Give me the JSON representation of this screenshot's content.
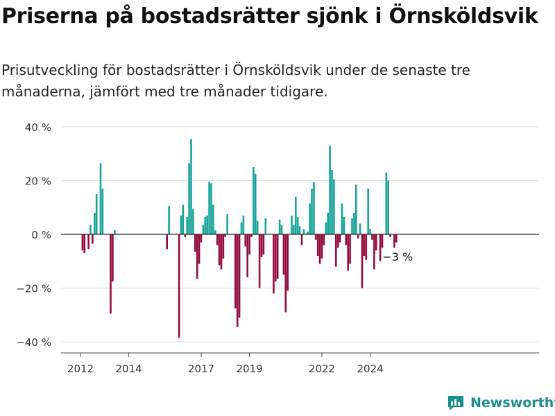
{
  "header": {
    "title": "Priserna på bostadsrätter sjönk i Örnsköldsvik",
    "subtitle": "Prisutveckling för bostadsrätter i Örnsköldsvik under de senaste tre månaderna, jämfört med tre månader tidigare."
  },
  "brand": {
    "name": "Newsworthy",
    "icon": "newsworthy-logo-icon"
  },
  "colors": {
    "positive": "#17a398",
    "negative": "#930a3e",
    "grid": "#dddddd",
    "axis": "#444444"
  },
  "chart_data": {
    "type": "bar",
    "title": "Priserna på bostadsrätter sjönk i Örnsköldsvik",
    "xlabel": "",
    "ylabel": "",
    "ylim": [
      -40,
      40
    ],
    "yticks": [
      40,
      20,
      0,
      -20,
      -40
    ],
    "ytick_labels": [
      "40 %",
      "20 %",
      "0 %",
      "−20 %",
      "−40 %"
    ],
    "xticks": [
      {
        "year": 2012,
        "label": "2012"
      },
      {
        "year": 2014,
        "label": "2014"
      },
      {
        "year": 2017,
        "label": "2017"
      },
      {
        "year": 2019,
        "label": "2019"
      },
      {
        "year": 2022,
        "label": "2022"
      },
      {
        "year": 2024,
        "label": "2024"
      }
    ],
    "series": [
      {
        "points": [
          [
            "2012-02",
            -6
          ],
          [
            "2012-03",
            -7
          ],
          [
            "2012-05",
            -5.5
          ],
          [
            "2012-06",
            3.5
          ],
          [
            "2012-07",
            -3.5
          ],
          [
            "2012-08",
            8
          ],
          [
            "2012-09",
            15
          ],
          [
            "2012-11",
            26.5
          ],
          [
            "2012-12",
            17
          ],
          [
            "2013-04",
            -29.5
          ],
          [
            "2013-05",
            -17.5
          ],
          [
            "2013-06",
            1.5
          ],
          [
            "2015-08",
            -5.5
          ],
          [
            "2015-09",
            10.5
          ],
          [
            "2016-02",
            -38.5
          ],
          [
            "2016-03",
            7
          ],
          [
            "2016-04",
            11
          ],
          [
            "2016-05",
            -1
          ],
          [
            "2016-06",
            6.5
          ],
          [
            "2016-07",
            26.5
          ],
          [
            "2016-08",
            35.5
          ],
          [
            "2016-09",
            9.5
          ],
          [
            "2016-10",
            -6.5
          ],
          [
            "2016-11",
            -16.5
          ],
          [
            "2016-12",
            -11
          ],
          [
            "2017-01",
            -3
          ],
          [
            "2017-02",
            3.5
          ],
          [
            "2017-03",
            6.5
          ],
          [
            "2017-04",
            7
          ],
          [
            "2017-05",
            19.5
          ],
          [
            "2017-06",
            19
          ],
          [
            "2017-07",
            11
          ],
          [
            "2017-08",
            1.5
          ],
          [
            "2017-09",
            -4
          ],
          [
            "2017-10",
            -11.5
          ],
          [
            "2017-11",
            -13
          ],
          [
            "2017-12",
            -9
          ],
          [
            "2018-01",
            -1
          ],
          [
            "2018-02",
            7.5
          ],
          [
            "2018-06",
            -27.5
          ],
          [
            "2018-07",
            -34.5
          ],
          [
            "2018-08",
            -31
          ],
          [
            "2018-09",
            4.5
          ],
          [
            "2018-10",
            7
          ],
          [
            "2018-11",
            -4.5
          ],
          [
            "2018-12",
            -16
          ],
          [
            "2019-01",
            -7.5
          ],
          [
            "2019-02",
            -1
          ],
          [
            "2019-03",
            25
          ],
          [
            "2019-04",
            22.5
          ],
          [
            "2019-05",
            5
          ],
          [
            "2019-06",
            -20
          ],
          [
            "2019-07",
            -8.5
          ],
          [
            "2019-08",
            -7.5
          ],
          [
            "2019-09",
            6
          ],
          [
            "2020-01",
            -22
          ],
          [
            "2020-02",
            -17.5
          ],
          [
            "2020-03",
            -16.5
          ],
          [
            "2020-04",
            5.5
          ],
          [
            "2020-05",
            3.5
          ],
          [
            "2020-06",
            -15
          ],
          [
            "2020-07",
            -29
          ],
          [
            "2020-08",
            -21
          ],
          [
            "2020-10",
            7
          ],
          [
            "2020-11",
            3.5
          ],
          [
            "2020-12",
            14
          ],
          [
            "2021-01",
            6.5
          ],
          [
            "2021-02",
            3
          ],
          [
            "2021-03",
            -4
          ],
          [
            "2021-04",
            2
          ],
          [
            "2021-06",
            1
          ],
          [
            "2021-07",
            11.5
          ],
          [
            "2021-08",
            17
          ],
          [
            "2021-09",
            19.5
          ],
          [
            "2021-10",
            -2
          ],
          [
            "2021-11",
            -8
          ],
          [
            "2021-12",
            -11
          ],
          [
            "2022-01",
            -9
          ],
          [
            "2022-02",
            -4
          ],
          [
            "2022-03",
            4.5
          ],
          [
            "2022-04",
            8
          ],
          [
            "2022-05",
            33
          ],
          [
            "2022-06",
            24
          ],
          [
            "2022-07",
            20.5
          ],
          [
            "2022-08",
            -12
          ],
          [
            "2022-09",
            -5
          ],
          [
            "2022-10",
            -3
          ],
          [
            "2022-11",
            11.5
          ],
          [
            "2022-12",
            6.5
          ],
          [
            "2023-01",
            -4
          ],
          [
            "2023-02",
            -13.5
          ],
          [
            "2023-03",
            -11
          ],
          [
            "2023-04",
            6
          ],
          [
            "2023-05",
            8
          ],
          [
            "2023-06",
            18.5
          ],
          [
            "2023-07",
            -1.5
          ],
          [
            "2023-08",
            4
          ],
          [
            "2023-09",
            -20
          ],
          [
            "2023-10",
            -8
          ],
          [
            "2023-11",
            -9.5
          ],
          [
            "2023-12",
            17
          ],
          [
            "2024-01",
            2
          ],
          [
            "2024-02",
            -2
          ],
          [
            "2024-03",
            -13
          ],
          [
            "2024-04",
            -6
          ],
          [
            "2024-06",
            -10
          ],
          [
            "2024-07",
            -5
          ],
          [
            "2024-09",
            23
          ],
          [
            "2024-10",
            20
          ],
          [
            "2024-11",
            -1
          ],
          [
            "2025-01",
            -5
          ],
          [
            "2025-02",
            -3
          ]
        ]
      }
    ],
    "annotation": {
      "date": "2025-02",
      "label": "−3 %"
    }
  }
}
